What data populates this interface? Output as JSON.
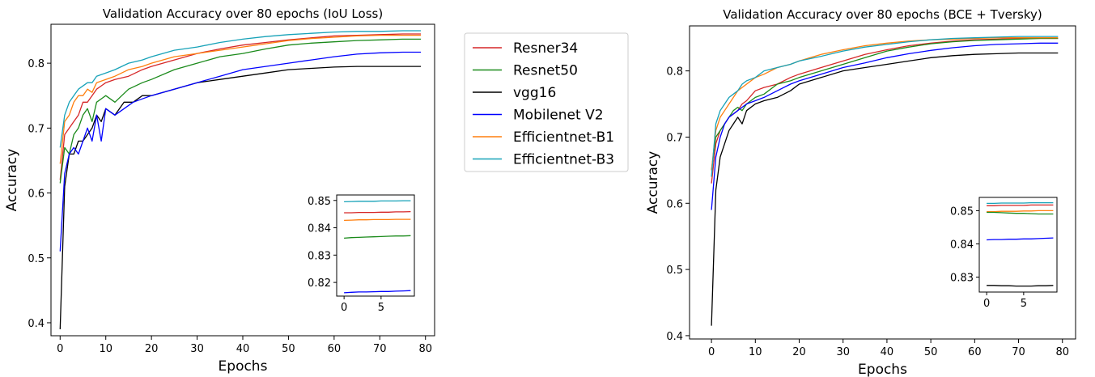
{
  "figure_title": "",
  "colors": {
    "Resner34": "#d62728",
    "Resnet50": "#1a8a1a",
    "vgg16": "#000000",
    "Mobilenet V2": "#0000ff",
    "Efficientnet-B1": "#ff7f0e",
    "Efficientnet-B3": "#17a2b8"
  },
  "legend": {
    "entries": [
      "Resner34",
      "Resnet50",
      "vgg16",
      "Mobilenet V2",
      "Efficientnet-B1",
      "Efficientnet-B3"
    ],
    "placement": "between-panels"
  },
  "chart_data": [
    {
      "type": "line",
      "title": "Validation Accuracy over 80 epochs (IoU Loss)",
      "xlabel": "Epochs",
      "ylabel": "Accuracy",
      "xlim": [
        -2,
        82
      ],
      "ylim": [
        0.38,
        0.86
      ],
      "xticks": [
        0,
        10,
        20,
        30,
        40,
        50,
        60,
        70,
        80
      ],
      "yticks": [
        0.4,
        0.5,
        0.6,
        0.7,
        0.8
      ],
      "series": [
        {
          "name": "Resner34",
          "x": [
            0,
            1,
            2,
            3,
            4,
            5,
            6,
            7,
            8,
            10,
            12,
            15,
            18,
            20,
            25,
            30,
            35,
            40,
            45,
            50,
            55,
            60,
            65,
            70,
            75,
            79
          ],
          "y": [
            0.62,
            0.69,
            0.7,
            0.71,
            0.72,
            0.74,
            0.74,
            0.75,
            0.76,
            0.77,
            0.775,
            0.78,
            0.79,
            0.795,
            0.805,
            0.815,
            0.822,
            0.828,
            0.832,
            0.836,
            0.839,
            0.842,
            0.843,
            0.844,
            0.845,
            0.845
          ]
        },
        {
          "name": "Resnet50",
          "x": [
            0,
            1,
            2,
            3,
            4,
            5,
            6,
            7,
            8,
            10,
            12,
            15,
            18,
            20,
            25,
            30,
            35,
            40,
            45,
            50,
            55,
            60,
            65,
            70,
            75,
            79
          ],
          "y": [
            0.615,
            0.67,
            0.66,
            0.69,
            0.7,
            0.72,
            0.73,
            0.71,
            0.74,
            0.75,
            0.74,
            0.76,
            0.77,
            0.775,
            0.79,
            0.8,
            0.81,
            0.815,
            0.822,
            0.828,
            0.831,
            0.833,
            0.835,
            0.836,
            0.837,
            0.837
          ]
        },
        {
          "name": "vgg16",
          "x": [
            0,
            1,
            2,
            3,
            4,
            5,
            6,
            7,
            8,
            9,
            10,
            12,
            14,
            16,
            18,
            20,
            25,
            30,
            35,
            40,
            45,
            50,
            55,
            60,
            65,
            70,
            75,
            79
          ],
          "y": [
            0.39,
            0.61,
            0.66,
            0.66,
            0.68,
            0.68,
            0.69,
            0.7,
            0.72,
            0.71,
            0.73,
            0.72,
            0.74,
            0.74,
            0.75,
            0.75,
            0.76,
            0.77,
            0.775,
            0.78,
            0.785,
            0.79,
            0.792,
            0.794,
            0.795,
            0.795,
            0.795,
            0.795
          ]
        },
        {
          "name": "Mobilenet V2",
          "x": [
            0,
            1,
            2,
            3,
            4,
            5,
            6,
            7,
            8,
            9,
            10,
            12,
            14,
            16,
            18,
            20,
            25,
            30,
            35,
            40,
            45,
            50,
            55,
            60,
            65,
            70,
            75,
            79
          ],
          "y": [
            0.51,
            0.63,
            0.66,
            0.67,
            0.66,
            0.68,
            0.7,
            0.68,
            0.72,
            0.68,
            0.73,
            0.72,
            0.73,
            0.74,
            0.745,
            0.75,
            0.76,
            0.77,
            0.78,
            0.79,
            0.795,
            0.8,
            0.805,
            0.81,
            0.814,
            0.816,
            0.817,
            0.817
          ]
        },
        {
          "name": "Efficientnet-B1",
          "x": [
            0,
            1,
            2,
            3,
            4,
            5,
            6,
            7,
            8,
            10,
            12,
            15,
            18,
            20,
            25,
            30,
            35,
            40,
            45,
            50,
            55,
            60,
            65,
            70,
            75,
            79
          ],
          "y": [
            0.645,
            0.71,
            0.72,
            0.74,
            0.75,
            0.75,
            0.76,
            0.755,
            0.77,
            0.775,
            0.78,
            0.79,
            0.795,
            0.8,
            0.81,
            0.815,
            0.82,
            0.825,
            0.83,
            0.835,
            0.838,
            0.84,
            0.842,
            0.843,
            0.843,
            0.843
          ]
        },
        {
          "name": "Efficientnet-B3",
          "x": [
            0,
            1,
            2,
            3,
            4,
            5,
            6,
            7,
            8,
            10,
            12,
            15,
            18,
            20,
            25,
            30,
            35,
            40,
            45,
            50,
            55,
            60,
            65,
            70,
            75,
            79
          ],
          "y": [
            0.67,
            0.72,
            0.74,
            0.75,
            0.76,
            0.765,
            0.77,
            0.77,
            0.78,
            0.785,
            0.79,
            0.8,
            0.805,
            0.81,
            0.82,
            0.825,
            0.832,
            0.837,
            0.841,
            0.844,
            0.846,
            0.848,
            0.849,
            0.849,
            0.85,
            0.85
          ]
        }
      ],
      "inset": {
        "xlim": [
          -1,
          9.5
        ],
        "ylim": [
          0.815,
          0.852
        ],
        "xticks": [
          0,
          5
        ],
        "yticks": [
          0.82,
          0.83,
          0.84,
          0.85
        ],
        "series": [
          {
            "name": "Efficientnet-B3",
            "values": [
              0.8495,
              0.8496,
              0.8497,
              0.8497,
              0.8497,
              0.8498,
              0.8498,
              0.8498,
              0.8499,
              0.8499
            ]
          },
          {
            "name": "Resner34",
            "values": [
              0.8455,
              0.8455,
              0.8456,
              0.8456,
              0.8456,
              0.8457,
              0.8457,
              0.8458,
              0.8458,
              0.8459
            ]
          },
          {
            "name": "Efficientnet-B1",
            "values": [
              0.8427,
              0.8428,
              0.8429,
              0.8429,
              0.843,
              0.843,
              0.843,
              0.8431,
              0.8431,
              0.8431
            ]
          },
          {
            "name": "Resnet50",
            "values": [
              0.8362,
              0.8364,
              0.8365,
              0.8366,
              0.8367,
              0.8368,
              0.8369,
              0.837,
              0.837,
              0.8371
            ]
          },
          {
            "name": "Mobilenet V2",
            "values": [
              0.8162,
              0.8164,
              0.8165,
              0.8165,
              0.8166,
              0.8167,
              0.8167,
              0.8168,
              0.8169,
              0.817
            ]
          }
        ]
      }
    },
    {
      "type": "line",
      "title": "Validation Accuracy over 80 epochs (BCE + Tversky)",
      "xlabel": "Epochs",
      "ylabel": "Accuracy",
      "xlim": [
        -5,
        83
      ],
      "ylim": [
        0.395,
        0.868
      ],
      "xticks": [
        0,
        10,
        20,
        30,
        40,
        50,
        60,
        70,
        80
      ],
      "yticks": [
        0.4,
        0.5,
        0.6,
        0.7,
        0.8
      ],
      "series": [
        {
          "name": "Resner34",
          "x": [
            0,
            1,
            2,
            3,
            4,
            5,
            6,
            7,
            8,
            10,
            12,
            15,
            18,
            20,
            25,
            30,
            35,
            40,
            45,
            50,
            55,
            60,
            65,
            70,
            75,
            79
          ],
          "y": [
            0.63,
            0.69,
            0.71,
            0.72,
            0.73,
            0.735,
            0.74,
            0.75,
            0.755,
            0.77,
            0.775,
            0.78,
            0.79,
            0.795,
            0.805,
            0.815,
            0.825,
            0.832,
            0.838,
            0.842,
            0.845,
            0.847,
            0.848,
            0.849,
            0.849,
            0.849
          ]
        },
        {
          "name": "Resnet50",
          "x": [
            0,
            1,
            2,
            3,
            4,
            5,
            6,
            7,
            8,
            10,
            12,
            15,
            18,
            20,
            25,
            30,
            35,
            40,
            45,
            50,
            55,
            60,
            65,
            70,
            75,
            79
          ],
          "y": [
            0.65,
            0.7,
            0.71,
            0.72,
            0.73,
            0.74,
            0.745,
            0.74,
            0.75,
            0.76,
            0.765,
            0.78,
            0.785,
            0.79,
            0.8,
            0.81,
            0.82,
            0.83,
            0.836,
            0.841,
            0.844,
            0.846,
            0.847,
            0.848,
            0.849,
            0.849
          ]
        },
        {
          "name": "vgg16",
          "x": [
            0,
            1,
            2,
            3,
            4,
            5,
            6,
            7,
            8,
            10,
            12,
            15,
            18,
            20,
            25,
            30,
            35,
            40,
            45,
            50,
            55,
            60,
            65,
            70,
            75,
            79
          ],
          "y": [
            0.415,
            0.62,
            0.67,
            0.69,
            0.71,
            0.72,
            0.73,
            0.72,
            0.74,
            0.75,
            0.755,
            0.76,
            0.77,
            0.78,
            0.79,
            0.8,
            0.805,
            0.81,
            0.815,
            0.82,
            0.823,
            0.825,
            0.826,
            0.827,
            0.827,
            0.827
          ]
        },
        {
          "name": "Mobilenet V2",
          "x": [
            0,
            1,
            2,
            3,
            4,
            5,
            6,
            7,
            8,
            10,
            12,
            15,
            18,
            20,
            25,
            30,
            35,
            40,
            45,
            50,
            55,
            60,
            65,
            70,
            75,
            79
          ],
          "y": [
            0.59,
            0.67,
            0.7,
            0.72,
            0.73,
            0.735,
            0.74,
            0.745,
            0.75,
            0.755,
            0.76,
            0.77,
            0.78,
            0.785,
            0.795,
            0.805,
            0.812,
            0.82,
            0.826,
            0.831,
            0.835,
            0.838,
            0.84,
            0.841,
            0.842,
            0.842
          ]
        },
        {
          "name": "Efficientnet-B1",
          "x": [
            0,
            1,
            2,
            3,
            4,
            5,
            6,
            7,
            8,
            10,
            12,
            15,
            18,
            20,
            25,
            30,
            35,
            40,
            45,
            50,
            55,
            60,
            65,
            70,
            75,
            79
          ],
          "y": [
            0.65,
            0.71,
            0.73,
            0.74,
            0.75,
            0.76,
            0.77,
            0.775,
            0.78,
            0.79,
            0.795,
            0.805,
            0.81,
            0.815,
            0.825,
            0.832,
            0.838,
            0.842,
            0.845,
            0.847,
            0.848,
            0.849,
            0.85,
            0.85,
            0.85,
            0.85
          ]
        },
        {
          "name": "Efficientnet-B3",
          "x": [
            0,
            1,
            2,
            3,
            4,
            5,
            6,
            7,
            8,
            10,
            12,
            15,
            18,
            20,
            25,
            30,
            35,
            40,
            45,
            50,
            55,
            60,
            65,
            70,
            75,
            79
          ],
          "y": [
            0.64,
            0.72,
            0.74,
            0.75,
            0.76,
            0.765,
            0.77,
            0.78,
            0.785,
            0.79,
            0.8,
            0.805,
            0.81,
            0.815,
            0.822,
            0.83,
            0.836,
            0.84,
            0.844,
            0.847,
            0.849,
            0.85,
            0.851,
            0.852,
            0.852,
            0.852
          ]
        }
      ],
      "inset": {
        "xlim": [
          -1,
          9.5
        ],
        "ylim": [
          0.8255,
          0.854
        ],
        "xticks": [
          0,
          5
        ],
        "yticks": [
          0.83,
          0.84,
          0.85
        ],
        "series": [
          {
            "name": "Efficientnet-B3",
            "values": [
              0.8522,
              0.8522,
              0.8523,
              0.8523,
              0.8523,
              0.8523,
              0.8524,
              0.8524,
              0.8524,
              0.8524
            ]
          },
          {
            "name": "Resner34",
            "values": [
              0.8515,
              0.8515,
              0.8516,
              0.8516,
              0.8516,
              0.8516,
              0.8517,
              0.8517,
              0.8517,
              0.8517
            ]
          },
          {
            "name": "Efficientnet-B1",
            "values": [
              0.8497,
              0.8497,
              0.8498,
              0.8498,
              0.8498,
              0.8499,
              0.8499,
              0.85,
              0.85,
              0.85
            ]
          },
          {
            "name": "Resnet50",
            "values": [
              0.8495,
              0.8495,
              0.8494,
              0.8493,
              0.8492,
              0.8492,
              0.8491,
              0.849,
              0.849,
              0.849
            ]
          },
          {
            "name": "Mobilenet V2",
            "values": [
              0.8412,
              0.8413,
              0.8413,
              0.8414,
              0.8414,
              0.8415,
              0.8415,
              0.8416,
              0.8417,
              0.8418
            ]
          },
          {
            "name": "vgg16",
            "values": [
              0.8275,
              0.8275,
              0.8274,
              0.8274,
              0.8273,
              0.8273,
              0.8273,
              0.8274,
              0.8274,
              0.8275
            ]
          }
        ]
      }
    }
  ]
}
